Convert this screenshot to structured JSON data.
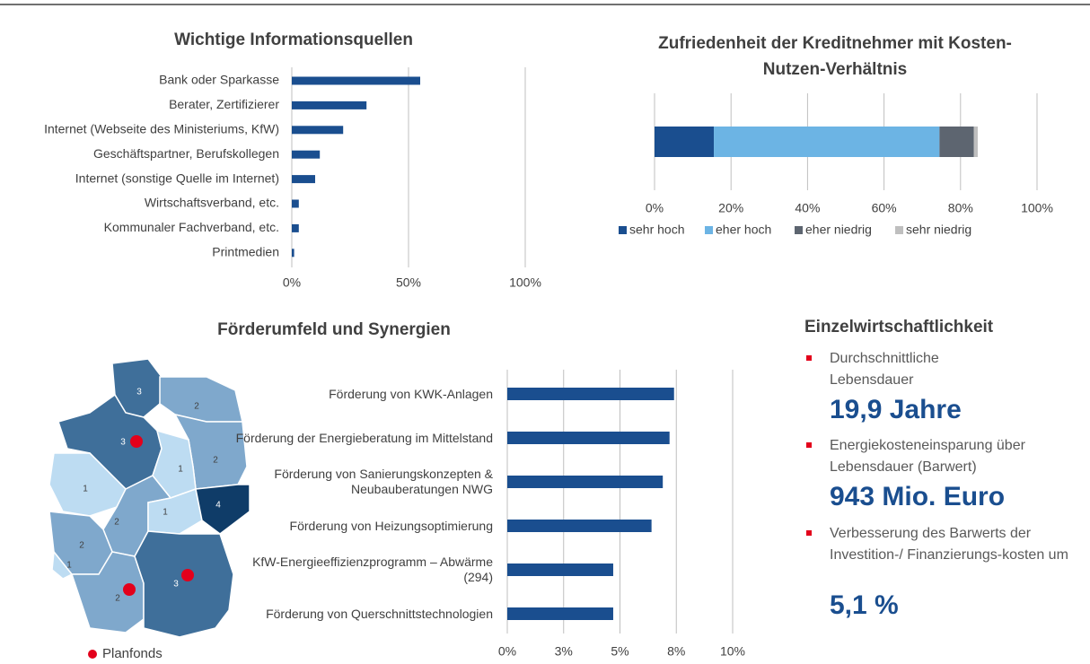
{
  "chart_data": [
    {
      "type": "bar",
      "orientation": "horizontal",
      "title": "Wichtige Informationsquellen",
      "color": "#1a4e8f",
      "categories": [
        "Bank oder Sparkasse",
        "Berater, Zertifizierer",
        "Internet (Webseite des Ministeriums, KfW)",
        "Geschäftspartner, Berufskollegen",
        "Internet (sonstige Quelle im Internet)",
        "Wirtschaftsverband, etc.",
        "Kommunaler Fachverband, etc.",
        "Printmedien"
      ],
      "values": [
        55,
        32,
        22,
        12,
        10,
        3,
        3,
        1
      ],
      "xlim": [
        0,
        100
      ],
      "xticks": [
        {
          "value": 0,
          "label": "0%"
        },
        {
          "value": 50,
          "label": "50%"
        },
        {
          "value": 100,
          "label": "100%"
        }
      ],
      "grid": true
    },
    {
      "type": "stacked_bar",
      "orientation": "horizontal",
      "title": "Zufriedenheit der Kreditnehmer mit Kosten-Nutzen-Verhältnis",
      "series": [
        {
          "name": "sehr hoch",
          "color": "#1a4e8f",
          "values": [
            15.5
          ]
        },
        {
          "name": "eher hoch",
          "color": "#6cb4e4",
          "values": [
            59
          ]
        },
        {
          "name": "eher niedrig",
          "color": "#5d6570",
          "values": [
            9
          ]
        },
        {
          "name": "sehr niedrig",
          "color": "#bfbfbf",
          "values": [
            1
          ]
        }
      ],
      "xlim": [
        0,
        100
      ],
      "xticks": [
        {
          "value": 0,
          "label": "0%"
        },
        {
          "value": 20,
          "label": "20%"
        },
        {
          "value": 40,
          "label": "40%"
        },
        {
          "value": 60,
          "label": "60%"
        },
        {
          "value": 80,
          "label": "80%"
        },
        {
          "value": 100,
          "label": "100%"
        }
      ],
      "grid": true,
      "legend": "bottom"
    },
    {
      "type": "bar",
      "orientation": "horizontal",
      "title": "Förderumfeld und Synergien",
      "color": "#1a4e8f",
      "categories": [
        "Förderung von KWK-Anlagen",
        "Förderung der Energieberatung im Mittelstand",
        "Förderung von Sanierungskonzepten & Neubauberatungen NWG",
        "Förderung von Heizungsoptimierung",
        "KfW-Energieeffizienzprogramm – Abwärme (294)",
        "Förderung von Querschnittstechnologien"
      ],
      "values": [
        7.4,
        7.2,
        6.9,
        6.4,
        4.7,
        4.7
      ],
      "xlim": [
        0,
        10
      ],
      "xticks": [
        {
          "value": 0,
          "label": "0%"
        },
        {
          "value": 2.5,
          "label": "3%"
        },
        {
          "value": 5,
          "label": "5%"
        },
        {
          "value": 7.5,
          "label": "8%"
        },
        {
          "value": 10,
          "label": "10%"
        }
      ],
      "grid": true
    }
  ],
  "map": {
    "legend": "Planfonds",
    "regions": [
      {
        "value": 3
      },
      {
        "value": 2
      },
      {
        "value": 3,
        "planfonds": true
      },
      {
        "value": 2
      },
      {
        "value": 1
      },
      {
        "value": 1
      },
      {
        "value": 2
      },
      {
        "value": 1
      },
      {
        "value": 4
      },
      {
        "value": 2
      },
      {
        "value": 1
      },
      {
        "value": 2,
        "planfonds": true
      },
      {
        "value": 3,
        "planfonds": true
      }
    ]
  },
  "panel": {
    "title": "Einzelwirtschaftlichkeit",
    "items": [
      {
        "text": "Durchschnittliche Lebensdauer",
        "value": "19,9 Jahre"
      },
      {
        "text": "Energiekosteneinsparung über Lebensdauer (Barwert)",
        "value": "943 Mio. Euro"
      },
      {
        "text": "Verbesserung des Barwerts der Investition-/ Finanzierungs-kosten um",
        "value": "5,1 %"
      }
    ]
  }
}
